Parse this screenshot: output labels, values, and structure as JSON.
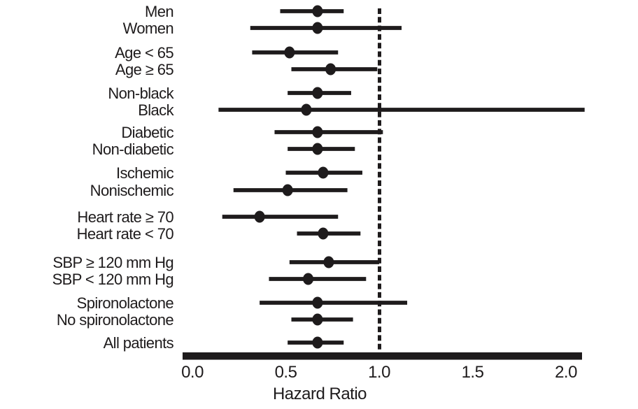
{
  "figure": {
    "background": "#ffffff",
    "ink_color": "#1e1b1c"
  },
  "chart_data": {
    "type": "scatter",
    "subtype": "forest-plot",
    "title": "",
    "xlabel": "Hazard Ratio",
    "ylabel": "",
    "xlim": [
      0.0,
      2.1
    ],
    "x_ticks": [
      0.0,
      0.5,
      1.0,
      1.5,
      2.0
    ],
    "x_tick_labels": [
      "0.0",
      "0.5",
      "1.0",
      "1.5",
      "2.0"
    ],
    "reference_line": 1.0,
    "reference_line_style": "dotted",
    "grid": false,
    "legend": "none",
    "marker": "filled-circle",
    "rows": [
      {
        "label": "Men",
        "hr": 0.67,
        "ci_low": 0.47,
        "ci_high": 0.81,
        "group": 0
      },
      {
        "label": "Women",
        "hr": 0.67,
        "ci_low": 0.31,
        "ci_high": 1.12,
        "group": 0
      },
      {
        "label": "Age < 65",
        "hr": 0.52,
        "ci_low": 0.32,
        "ci_high": 0.78,
        "group": 1
      },
      {
        "label": "Age ≥ 65",
        "hr": 0.74,
        "ci_low": 0.53,
        "ci_high": 0.99,
        "group": 1
      },
      {
        "label": "Non-black",
        "hr": 0.67,
        "ci_low": 0.51,
        "ci_high": 0.85,
        "group": 2
      },
      {
        "label": "Black",
        "hr": 0.61,
        "ci_low": 0.14,
        "ci_high": 2.1,
        "group": 2
      },
      {
        "label": "Diabetic",
        "hr": 0.67,
        "ci_low": 0.44,
        "ci_high": 1.02,
        "group": 3
      },
      {
        "label": "Non-diabetic",
        "hr": 0.67,
        "ci_low": 0.51,
        "ci_high": 0.87,
        "group": 3
      },
      {
        "label": "Ischemic",
        "hr": 0.7,
        "ci_low": 0.5,
        "ci_high": 0.91,
        "group": 4
      },
      {
        "label": "Nonischemic",
        "hr": 0.51,
        "ci_low": 0.22,
        "ci_high": 0.83,
        "group": 4
      },
      {
        "label": "Heart rate ≥ 70",
        "hr": 0.36,
        "ci_low": 0.16,
        "ci_high": 0.78,
        "group": 5
      },
      {
        "label": "Heart rate < 70",
        "hr": 0.7,
        "ci_low": 0.56,
        "ci_high": 0.9,
        "group": 5
      },
      {
        "label": "SBP ≥ 120 mm Hg",
        "hr": 0.73,
        "ci_low": 0.52,
        "ci_high": 1.0,
        "group": 6
      },
      {
        "label": "SBP < 120 mm Hg",
        "hr": 0.62,
        "ci_low": 0.41,
        "ci_high": 0.93,
        "group": 6
      },
      {
        "label": "Spironolactone",
        "hr": 0.67,
        "ci_low": 0.36,
        "ci_high": 1.15,
        "group": 7
      },
      {
        "label": "No spironolactone",
        "hr": 0.67,
        "ci_low": 0.53,
        "ci_high": 0.86,
        "group": 7
      },
      {
        "label": "All patients",
        "hr": 0.67,
        "ci_low": 0.51,
        "ci_high": 0.81,
        "group": 8
      }
    ]
  }
}
